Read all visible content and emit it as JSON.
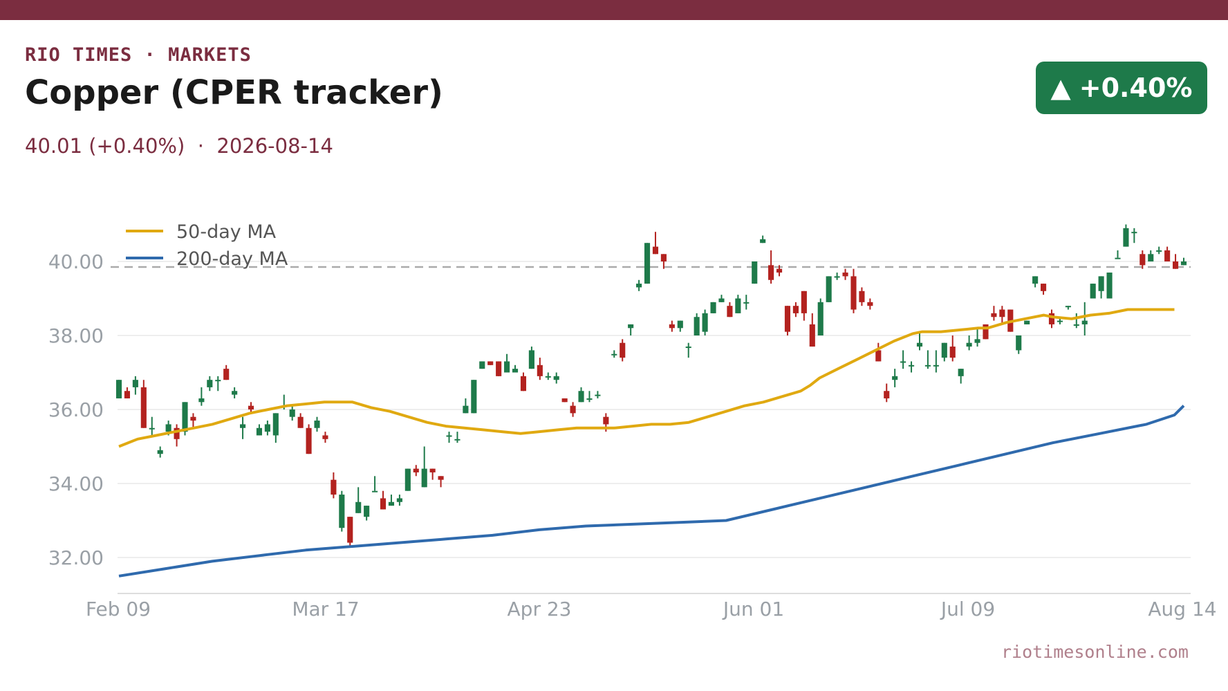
{
  "header": {
    "kicker": "RIO TIMES · MARKETS",
    "title": "Copper (CPER tracker)",
    "subtitle": "40.01 (+0.40%)  ·  2026-08-14",
    "badge_arrow": "▲",
    "badge_value": "+0.40%"
  },
  "footer": {
    "source": "riotimesonline.com"
  },
  "colors": {
    "brand": "#7b2d40",
    "up": "#1e7a4a",
    "down": "#b3221f",
    "ma50": "#e0a911",
    "ma200": "#2f6aad",
    "grid": "#eeeeee",
    "axis_text": "#9aa0a6"
  },
  "chart_data": {
    "type": "candlestick",
    "title": "Copper (CPER tracker)",
    "ylim": [
      31.0,
      41.5
    ],
    "y_ticks": [
      32.0,
      34.0,
      36.0,
      38.0,
      40.0
    ],
    "y_tick_labels": [
      "32.00",
      "34.00",
      "36.00",
      "38.00",
      "40.00"
    ],
    "x_ticks": [
      "Feb 09",
      "Mar 17",
      "Apr 23",
      "Jun 01",
      "Jul 09",
      "Aug 14"
    ],
    "reference_line": 39.85,
    "legend": {
      "position": "top-left",
      "entries": [
        {
          "label": "50-day MA",
          "color": "#e0a911"
        },
        {
          "label": "200-day MA",
          "color": "#2f6aad"
        }
      ]
    },
    "grid": true,
    "candles": [
      [
        36.3,
        36.8,
        36.3,
        36.8
      ],
      [
        36.5,
        36.6,
        36.3,
        36.3
      ],
      [
        36.6,
        36.9,
        36.4,
        36.8
      ],
      [
        36.6,
        36.8,
        35.5,
        35.5
      ],
      [
        35.5,
        35.8,
        35.3,
        35.5
      ],
      [
        34.8,
        35.0,
        34.7,
        34.9
      ],
      [
        35.4,
        35.7,
        35.3,
        35.6
      ],
      [
        35.5,
        35.6,
        35.0,
        35.2
      ],
      [
        35.4,
        36.2,
        35.3,
        36.2
      ],
      [
        35.8,
        35.9,
        35.5,
        35.7
      ],
      [
        36.2,
        36.6,
        36.1,
        36.3
      ],
      [
        36.6,
        36.9,
        36.5,
        36.8
      ],
      [
        36.8,
        36.9,
        36.5,
        36.8
      ],
      [
        37.1,
        37.2,
        36.8,
        36.8
      ],
      [
        36.4,
        36.6,
        36.3,
        36.5
      ],
      [
        35.5,
        35.8,
        35.2,
        35.6
      ],
      [
        36.1,
        36.2,
        35.9,
        36.0
      ],
      [
        35.3,
        35.6,
        35.3,
        35.5
      ],
      [
        35.4,
        35.7,
        35.3,
        35.6
      ],
      [
        35.3,
        35.9,
        35.1,
        35.9
      ],
      [
        36.1,
        36.4,
        36.0,
        36.1
      ],
      [
        35.8,
        36.1,
        35.7,
        36.0
      ],
      [
        35.8,
        35.9,
        35.5,
        35.5
      ],
      [
        35.5,
        35.6,
        34.8,
        34.8
      ],
      [
        35.5,
        35.8,
        35.4,
        35.7
      ],
      [
        35.3,
        35.4,
        35.1,
        35.2
      ],
      [
        34.1,
        34.3,
        33.6,
        33.7
      ],
      [
        32.8,
        33.8,
        32.7,
        33.7
      ],
      [
        33.1,
        33.1,
        32.3,
        32.4
      ],
      [
        33.2,
        33.9,
        33.2,
        33.5
      ],
      [
        33.1,
        33.4,
        33.0,
        33.4
      ],
      [
        33.8,
        34.2,
        33.8,
        33.8
      ],
      [
        33.6,
        33.8,
        33.3,
        33.3
      ],
      [
        33.4,
        33.7,
        33.4,
        33.5
      ],
      [
        33.5,
        33.7,
        33.4,
        33.6
      ],
      [
        33.8,
        34.4,
        33.8,
        34.4
      ],
      [
        34.4,
        34.5,
        34.2,
        34.3
      ],
      [
        33.9,
        35.0,
        33.9,
        34.4
      ],
      [
        34.4,
        34.4,
        34.1,
        34.3
      ],
      [
        34.2,
        34.2,
        33.9,
        34.1
      ],
      [
        35.3,
        35.4,
        35.1,
        35.3
      ],
      [
        35.2,
        35.4,
        35.1,
        35.2
      ],
      [
        35.9,
        36.3,
        35.9,
        36.1
      ],
      [
        35.9,
        36.8,
        35.9,
        36.8
      ],
      [
        37.1,
        37.3,
        37.1,
        37.3
      ],
      [
        37.3,
        37.3,
        37.2,
        37.2
      ],
      [
        37.3,
        37.3,
        36.9,
        36.9
      ],
      [
        37.0,
        37.5,
        37.0,
        37.3
      ],
      [
        37.0,
        37.2,
        37.0,
        37.1
      ],
      [
        36.9,
        37.0,
        36.5,
        36.5
      ],
      [
        37.1,
        37.7,
        37.1,
        37.6
      ],
      [
        37.2,
        37.4,
        36.8,
        36.9
      ],
      [
        36.9,
        37.0,
        36.8,
        36.9
      ],
      [
        36.8,
        37.0,
        36.7,
        36.9
      ],
      [
        36.3,
        36.3,
        36.2,
        36.2
      ],
      [
        36.1,
        36.2,
        35.8,
        35.9
      ],
      [
        36.2,
        36.6,
        36.2,
        36.5
      ],
      [
        36.3,
        36.5,
        36.2,
        36.3
      ],
      [
        36.4,
        36.5,
        36.3,
        36.4
      ],
      [
        35.8,
        35.9,
        35.4,
        35.6
      ],
      [
        37.5,
        37.6,
        37.4,
        37.5
      ],
      [
        37.8,
        37.9,
        37.3,
        37.4
      ],
      [
        38.2,
        38.3,
        38.0,
        38.3
      ],
      [
        39.3,
        39.5,
        39.2,
        39.4
      ],
      [
        39.4,
        40.5,
        39.4,
        40.5
      ],
      [
        40.4,
        40.8,
        40.2,
        40.2
      ],
      [
        40.2,
        40.2,
        39.8,
        40.0
      ],
      [
        38.3,
        38.4,
        38.1,
        38.2
      ],
      [
        38.2,
        38.4,
        38.1,
        38.4
      ],
      [
        37.7,
        37.8,
        37.4,
        37.7
      ],
      [
        38.0,
        38.6,
        38.0,
        38.5
      ],
      [
        38.1,
        38.7,
        38.0,
        38.6
      ],
      [
        38.6,
        38.9,
        38.6,
        38.9
      ],
      [
        38.9,
        39.1,
        38.9,
        39.0
      ],
      [
        38.8,
        38.9,
        38.5,
        38.5
      ],
      [
        38.6,
        39.1,
        38.6,
        39.0
      ],
      [
        38.9,
        39.1,
        38.7,
        38.9
      ],
      [
        39.4,
        40.0,
        39.4,
        40.0
      ],
      [
        40.5,
        40.7,
        40.5,
        40.6
      ],
      [
        39.9,
        40.3,
        39.4,
        39.5
      ],
      [
        39.8,
        39.9,
        39.6,
        39.7
      ],
      [
        38.8,
        38.8,
        38.0,
        38.1
      ],
      [
        38.8,
        38.9,
        38.5,
        38.6
      ],
      [
        39.2,
        39.2,
        38.4,
        38.6
      ],
      [
        38.3,
        38.6,
        37.7,
        37.7
      ],
      [
        38.0,
        39.0,
        38.0,
        38.9
      ],
      [
        38.9,
        39.6,
        38.9,
        39.6
      ],
      [
        39.6,
        39.7,
        39.5,
        39.6
      ],
      [
        39.7,
        39.8,
        39.5,
        39.6
      ],
      [
        39.6,
        39.8,
        38.6,
        38.7
      ],
      [
        39.2,
        39.3,
        38.8,
        38.9
      ],
      [
        38.9,
        39.0,
        38.7,
        38.8
      ],
      [
        37.6,
        37.8,
        37.3,
        37.3
      ],
      [
        36.5,
        36.7,
        36.2,
        36.3
      ],
      [
        36.8,
        37.1,
        36.6,
        36.9
      ],
      [
        37.3,
        37.6,
        37.1,
        37.3
      ],
      [
        37.2,
        37.3,
        37.0,
        37.2
      ],
      [
        37.7,
        38.1,
        37.6,
        37.8
      ],
      [
        37.2,
        37.6,
        37.1,
        37.2
      ],
      [
        37.2,
        37.6,
        37.0,
        37.2
      ],
      [
        37.4,
        37.8,
        37.3,
        37.8
      ],
      [
        37.7,
        38.0,
        37.3,
        37.4
      ],
      [
        36.9,
        37.1,
        36.7,
        37.1
      ],
      [
        37.7,
        38.0,
        37.6,
        37.8
      ],
      [
        37.8,
        38.2,
        37.7,
        37.9
      ],
      [
        38.3,
        38.3,
        37.9,
        37.9
      ],
      [
        38.6,
        38.8,
        38.4,
        38.5
      ],
      [
        38.7,
        38.8,
        38.3,
        38.5
      ],
      [
        38.7,
        38.7,
        38.1,
        38.1
      ],
      [
        37.6,
        38.0,
        37.5,
        38.0
      ],
      [
        38.3,
        38.4,
        38.3,
        38.4
      ],
      [
        39.4,
        39.6,
        39.3,
        39.6
      ],
      [
        39.4,
        39.4,
        39.1,
        39.2
      ],
      [
        38.6,
        38.7,
        38.2,
        38.3
      ],
      [
        38.4,
        38.5,
        38.3,
        38.4
      ],
      [
        38.8,
        38.8,
        38.7,
        38.8
      ],
      [
        38.3,
        38.6,
        38.2,
        38.3
      ],
      [
        38.3,
        38.9,
        38.0,
        38.4
      ],
      [
        39.0,
        39.4,
        39.0,
        39.4
      ],
      [
        39.2,
        39.6,
        39.0,
        39.6
      ],
      [
        39.0,
        39.7,
        39.0,
        39.7
      ],
      [
        40.1,
        40.3,
        40.1,
        40.1
      ],
      [
        40.4,
        41.0,
        40.4,
        40.9
      ],
      [
        40.8,
        40.9,
        40.5,
        40.8
      ],
      [
        40.2,
        40.3,
        39.8,
        39.9
      ],
      [
        40.0,
        40.3,
        40.0,
        40.2
      ],
      [
        40.3,
        40.4,
        40.2,
        40.3
      ],
      [
        40.3,
        40.4,
        40.0,
        40.0
      ],
      [
        40.0,
        40.2,
        39.8,
        39.8
      ],
      [
        39.9,
        40.1,
        39.9,
        40.0
      ]
    ],
    "ma50": [
      [
        0,
        35.0
      ],
      [
        0.02,
        35.2
      ],
      [
        0.04,
        35.3
      ],
      [
        0.06,
        35.4
      ],
      [
        0.08,
        35.5
      ],
      [
        0.1,
        35.6
      ],
      [
        0.12,
        35.75
      ],
      [
        0.14,
        35.9
      ],
      [
        0.16,
        36.0
      ],
      [
        0.18,
        36.1
      ],
      [
        0.2,
        36.15
      ],
      [
        0.22,
        36.2
      ],
      [
        0.24,
        36.2
      ],
      [
        0.25,
        36.2
      ],
      [
        0.27,
        36.05
      ],
      [
        0.29,
        35.95
      ],
      [
        0.31,
        35.8
      ],
      [
        0.33,
        35.65
      ],
      [
        0.35,
        35.55
      ],
      [
        0.37,
        35.5
      ],
      [
        0.39,
        35.45
      ],
      [
        0.41,
        35.4
      ],
      [
        0.43,
        35.35
      ],
      [
        0.45,
        35.4
      ],
      [
        0.47,
        35.45
      ],
      [
        0.49,
        35.5
      ],
      [
        0.51,
        35.5
      ],
      [
        0.53,
        35.5
      ],
      [
        0.55,
        35.55
      ],
      [
        0.57,
        35.6
      ],
      [
        0.59,
        35.6
      ],
      [
        0.61,
        35.65
      ],
      [
        0.63,
        35.8
      ],
      [
        0.65,
        35.95
      ],
      [
        0.67,
        36.1
      ],
      [
        0.69,
        36.2
      ],
      [
        0.71,
        36.35
      ],
      [
        0.73,
        36.5
      ],
      [
        0.74,
        36.65
      ],
      [
        0.75,
        36.85
      ],
      [
        0.77,
        37.1
      ],
      [
        0.79,
        37.35
      ],
      [
        0.81,
        37.6
      ],
      [
        0.83,
        37.85
      ],
      [
        0.85,
        38.05
      ],
      [
        0.86,
        38.1
      ],
      [
        0.88,
        38.1
      ],
      [
        0.9,
        38.15
      ],
      [
        0.92,
        38.2
      ],
      [
        0.93,
        38.2
      ],
      [
        0.95,
        38.35
      ],
      [
        0.97,
        38.45
      ],
      [
        0.99,
        38.55
      ],
      [
        1.0,
        38.5
      ],
      [
        1.02,
        38.45
      ],
      [
        1.04,
        38.55
      ],
      [
        1.06,
        38.6
      ],
      [
        1.08,
        38.7
      ],
      [
        1.1,
        38.7
      ],
      [
        1.12,
        38.7
      ],
      [
        1.13,
        38.7
      ]
    ],
    "ma200": [
      [
        0,
        31.5
      ],
      [
        0.05,
        31.7
      ],
      [
        0.1,
        31.9
      ],
      [
        0.15,
        32.05
      ],
      [
        0.2,
        32.2
      ],
      [
        0.25,
        32.3
      ],
      [
        0.3,
        32.4
      ],
      [
        0.35,
        32.5
      ],
      [
        0.4,
        32.6
      ],
      [
        0.45,
        32.75
      ],
      [
        0.5,
        32.85
      ],
      [
        0.55,
        32.9
      ],
      [
        0.6,
        32.95
      ],
      [
        0.65,
        33.0
      ],
      [
        0.7,
        33.3
      ],
      [
        0.75,
        33.6
      ],
      [
        0.8,
        33.9
      ],
      [
        0.85,
        34.2
      ],
      [
        0.9,
        34.5
      ],
      [
        0.95,
        34.8
      ],
      [
        1.0,
        35.1
      ],
      [
        1.05,
        35.35
      ],
      [
        1.1,
        35.6
      ],
      [
        1.13,
        35.85
      ],
      [
        1.14,
        36.1
      ]
    ]
  }
}
